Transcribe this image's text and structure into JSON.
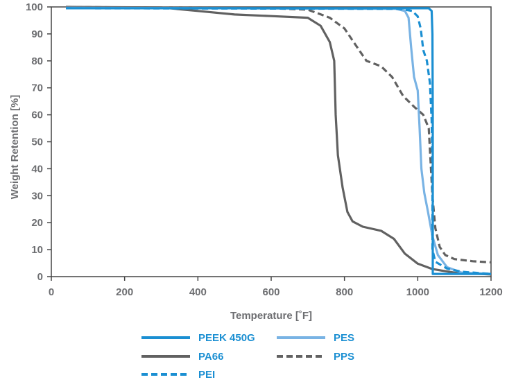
{
  "chart_data": {
    "type": "line",
    "title": "",
    "xlabel": "Temperature [˚F]",
    "ylabel": "Weight Retention [%]",
    "xlim": [
      0,
      1200
    ],
    "ylim": [
      0,
      100
    ],
    "x_ticks": [
      "0",
      "200",
      "400",
      "600",
      "800",
      "1000",
      "1200"
    ],
    "y_ticks": [
      "0",
      "10",
      "20",
      "30",
      "40",
      "50",
      "60",
      "70",
      "80",
      "90",
      "100"
    ],
    "x_tick_values": [
      0,
      200,
      400,
      600,
      800,
      1000,
      1200
    ],
    "y_tick_values": [
      0,
      10,
      20,
      30,
      40,
      50,
      60,
      70,
      80,
      90,
      100
    ],
    "grid": false,
    "legend_position": "bottom",
    "series": [
      {
        "name": "PEEK 450G",
        "color": "#1b8fd2",
        "style": "solid",
        "points": [
          [
            40,
            99.5
          ],
          [
            1030,
            99.5
          ],
          [
            1038,
            98.5
          ],
          [
            1040,
            90
          ],
          [
            1041,
            60
          ],
          [
            1041,
            30
          ],
          [
            1041,
            1
          ],
          [
            1200,
            1
          ]
        ]
      },
      {
        "name": "PA66",
        "color": "#616161",
        "style": "solid",
        "points": [
          [
            40,
            100
          ],
          [
            300,
            99.8
          ],
          [
            400,
            98.5
          ],
          [
            500,
            97.2
          ],
          [
            600,
            96.6
          ],
          [
            700,
            96
          ],
          [
            735,
            93
          ],
          [
            760,
            87
          ],
          [
            772,
            80
          ],
          [
            776,
            60
          ],
          [
            782,
            45
          ],
          [
            795,
            33
          ],
          [
            808,
            24
          ],
          [
            822,
            20.5
          ],
          [
            850,
            18.5
          ],
          [
            900,
            17
          ],
          [
            935,
            14
          ],
          [
            965,
            8.5
          ],
          [
            1000,
            4.8
          ],
          [
            1040,
            2.8
          ],
          [
            1100,
            1.5
          ],
          [
            1200,
            0.8
          ]
        ]
      },
      {
        "name": "PEI",
        "color": "#1b8fd2",
        "style": "dashed",
        "points": [
          [
            40,
            99.5
          ],
          [
            950,
            99.3
          ],
          [
            985,
            98.5
          ],
          [
            1000,
            96.5
          ],
          [
            1008,
            92
          ],
          [
            1015,
            84
          ],
          [
            1025,
            80
          ],
          [
            1033,
            72
          ],
          [
            1038,
            58
          ],
          [
            1040,
            40
          ],
          [
            1040,
            10
          ],
          [
            1048,
            5.5
          ],
          [
            1080,
            3
          ],
          [
            1120,
            1.8
          ],
          [
            1200,
            1
          ]
        ]
      },
      {
        "name": "PES",
        "color": "#79b3e4",
        "style": "solid",
        "points": [
          [
            40,
            99.7
          ],
          [
            940,
            99.3
          ],
          [
            965,
            98.5
          ],
          [
            975,
            96
          ],
          [
            982,
            85
          ],
          [
            990,
            74
          ],
          [
            1000,
            69
          ],
          [
            1005,
            55
          ],
          [
            1010,
            40
          ],
          [
            1018,
            31
          ],
          [
            1028,
            24
          ],
          [
            1040,
            15
          ],
          [
            1055,
            8
          ],
          [
            1080,
            3.5
          ],
          [
            1120,
            1.5
          ],
          [
            1200,
            1
          ]
        ]
      },
      {
        "name": "PPS",
        "color": "#616161",
        "style": "dashed",
        "points": [
          [
            40,
            100
          ],
          [
            300,
            99.7
          ],
          [
            600,
            99.5
          ],
          [
            700,
            99
          ],
          [
            760,
            96
          ],
          [
            800,
            92
          ],
          [
            830,
            86
          ],
          [
            860,
            80
          ],
          [
            900,
            78
          ],
          [
            930,
            74
          ],
          [
            960,
            67
          ],
          [
            990,
            63
          ],
          [
            1015,
            60
          ],
          [
            1030,
            55
          ],
          [
            1040,
            30
          ],
          [
            1048,
            18
          ],
          [
            1060,
            11
          ],
          [
            1075,
            8
          ],
          [
            1100,
            6.5
          ],
          [
            1150,
            5.7
          ],
          [
            1200,
            5.3
          ]
        ]
      }
    ]
  }
}
